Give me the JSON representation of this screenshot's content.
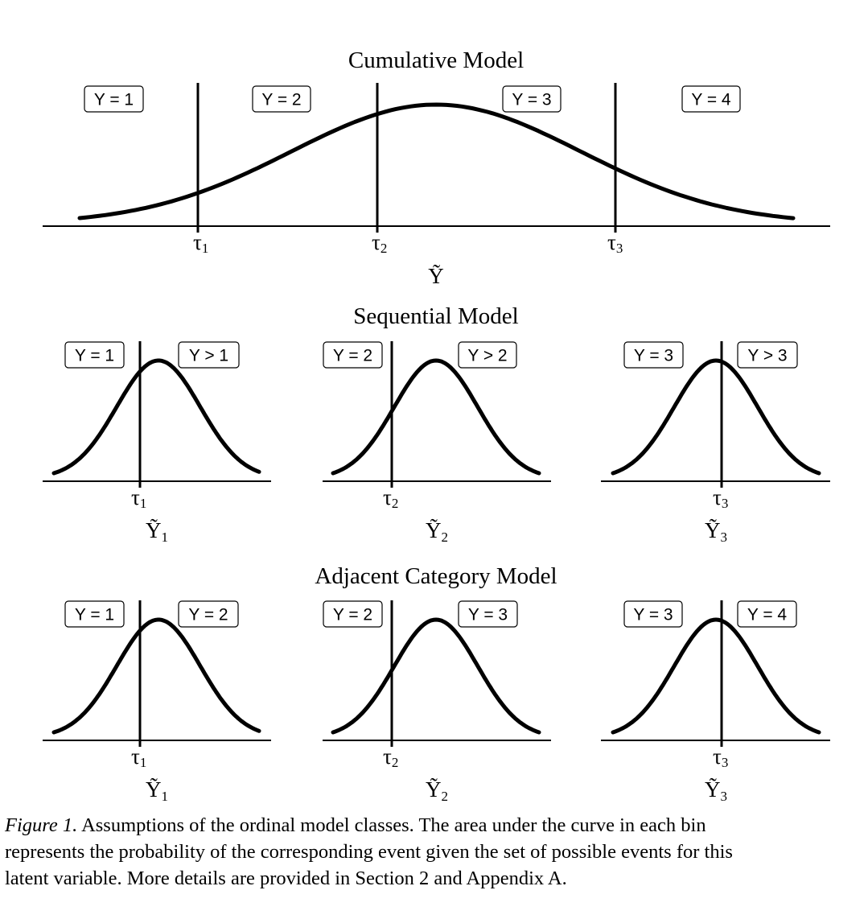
{
  "figure": {
    "panels": [
      {
        "id": "cumulative",
        "title": "Cumulative Model",
        "latent_label": "Ỹ",
        "latent_subscript": "",
        "threshold_labels": [
          "τ",
          "τ",
          "τ"
        ],
        "threshold_subscripts": [
          "1",
          "2",
          "3"
        ],
        "category_labels": [
          "Y = 1",
          "Y = 2",
          "Y = 3",
          "Y = 4"
        ]
      },
      {
        "id": "sequential",
        "title": "Sequential Model",
        "subplots": [
          {
            "left_label": "Y = 1",
            "right_label": "Y > 1",
            "threshold_label": "τ",
            "threshold_subscript": "1",
            "latent_label": "Ỹ",
            "latent_subscript": "1"
          },
          {
            "left_label": "Y = 2",
            "right_label": "Y > 2",
            "threshold_label": "τ",
            "threshold_subscript": "2",
            "latent_label": "Ỹ",
            "latent_subscript": "2"
          },
          {
            "left_label": "Y = 3",
            "right_label": "Y > 3",
            "threshold_label": "τ",
            "threshold_subscript": "3",
            "latent_label": "Ỹ",
            "latent_subscript": "3"
          }
        ]
      },
      {
        "id": "adjacent",
        "title": "Adjacent Category Model",
        "subplots": [
          {
            "left_label": "Y = 1",
            "right_label": "Y = 2",
            "threshold_label": "τ",
            "threshold_subscript": "1",
            "latent_label": "Ỹ",
            "latent_subscript": "1"
          },
          {
            "left_label": "Y = 2",
            "right_label": "Y = 3",
            "threshold_label": "τ",
            "threshold_subscript": "2",
            "latent_label": "Ỹ",
            "latent_subscript": "2"
          },
          {
            "left_label": "Y = 3",
            "right_label": "Y = 4",
            "threshold_label": "τ",
            "threshold_subscript": "3",
            "latent_label": "Ỹ",
            "latent_subscript": "3"
          }
        ]
      }
    ],
    "caption": {
      "label": "Figure 1.",
      "lines": [
        "Assumptions of the ordinal model classes. The area under the curve in each bin",
        "represents the probability of the corresponding event given the set of possible events for this",
        "latent variable. More details are provided in Section 2 and Appendix A."
      ]
    }
  }
}
